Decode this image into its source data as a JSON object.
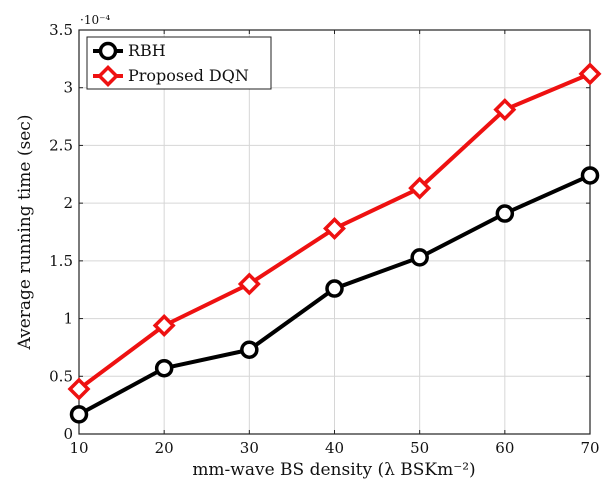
{
  "chart_data": {
    "type": "line",
    "x": [
      10,
      20,
      30,
      40,
      50,
      60,
      70
    ],
    "series": [
      {
        "name": "RBH",
        "values": [
          0.17,
          0.57,
          0.73,
          1.26,
          1.53,
          1.91,
          2.24
        ],
        "color": "#000000",
        "marker": "circle"
      },
      {
        "name": "Proposed DQN",
        "values": [
          0.39,
          0.94,
          1.3,
          1.78,
          2.13,
          2.81,
          3.12
        ],
        "color": "#ee1111",
        "marker": "diamond"
      }
    ],
    "xlabel": "mm-wave BS density (λ BSKm⁻²)",
    "ylabel": "Average running time (sec)",
    "y_multiplier": "·10⁻⁴",
    "xlim": [
      10,
      70
    ],
    "ylim": [
      0,
      3.5
    ],
    "xticks": [
      "10",
      "20",
      "30",
      "40",
      "50",
      "60",
      "70"
    ],
    "yticks": [
      "0",
      "0.5",
      "1",
      "1.5",
      "2",
      "2.5",
      "3",
      "3.5"
    ],
    "grid": true,
    "legend_position": "top-left"
  }
}
